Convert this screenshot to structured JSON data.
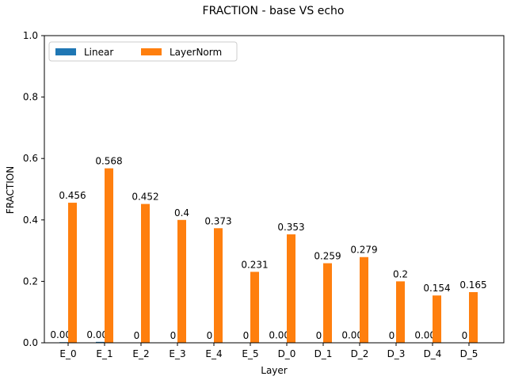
{
  "chart_data": {
    "type": "bar",
    "title": "FRACTION - base VS echo",
    "xlabel": "Layer",
    "ylabel": "FRACTION",
    "ylim": [
      0,
      1.0
    ],
    "yticks": [
      "0.0",
      "0.2",
      "0.4",
      "0.6",
      "0.8",
      "1.0"
    ],
    "grid": false,
    "legend_position": "top-left",
    "categories": [
      "E_0",
      "E_1",
      "E_2",
      "E_3",
      "E_4",
      "E_5",
      "D_0",
      "D_1",
      "D_2",
      "D_3",
      "D_4",
      "D_5"
    ],
    "series": [
      {
        "name": "Linear",
        "color": "#1f77b4",
        "values": [
          0.002,
          0.003,
          0,
          0,
          0,
          0,
          0.001,
          0,
          0.001,
          0,
          0.001,
          0
        ],
        "labels": [
          "0.002",
          "0.003",
          "0",
          "0",
          "0",
          "0",
          "0.001",
          "0",
          "0.001",
          "0",
          "0.001",
          "0"
        ]
      },
      {
        "name": "LayerNorm",
        "color": "#ff7f0e",
        "values": [
          0.456,
          0.568,
          0.452,
          0.4,
          0.373,
          0.231,
          0.353,
          0.259,
          0.279,
          0.2,
          0.154,
          0.165
        ],
        "labels": [
          "0.456",
          "0.568",
          "0.452",
          "0.4",
          "0.373",
          "0.231",
          "0.353",
          "0.259",
          "0.279",
          "0.2",
          "0.154",
          "0.165"
        ]
      }
    ]
  }
}
